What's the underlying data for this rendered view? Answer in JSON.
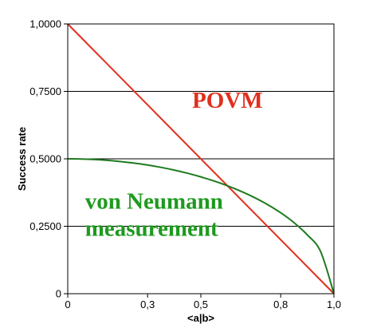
{
  "chart_data": {
    "type": "line",
    "title": "",
    "xlabel": "<a|b>",
    "ylabel": "Success rate",
    "xlim": [
      0,
      1
    ],
    "ylim": [
      0,
      1
    ],
    "x_ticks": [
      {
        "value": 0,
        "label": "0"
      },
      {
        "value": 0.3,
        "label": "0,3"
      },
      {
        "value": 0.5,
        "label": "0,5"
      },
      {
        "value": 0.8,
        "label": "0,8"
      },
      {
        "value": 1.0,
        "label": "1,0"
      }
    ],
    "y_ticks": [
      {
        "value": 0,
        "label": "0"
      },
      {
        "value": 0.25,
        "label": "0,2500"
      },
      {
        "value": 0.5,
        "label": "0,5000"
      },
      {
        "value": 0.75,
        "label": "0,7500"
      },
      {
        "value": 1.0,
        "label": "1,0000"
      }
    ],
    "grid": "horizontal",
    "series": [
      {
        "name": "POVM",
        "color": "#e0301e",
        "x": [
          0,
          1
        ],
        "y": [
          1.0,
          0
        ]
      },
      {
        "name": "von Neumann measurement",
        "color": "#1e7a1e",
        "x": [
          0,
          0.05,
          0.1,
          0.15,
          0.2,
          0.25,
          0.3,
          0.35,
          0.4,
          0.45,
          0.5,
          0.55,
          0.6,
          0.65,
          0.7,
          0.75,
          0.8,
          0.85,
          0.9,
          0.95,
          1.0
        ],
        "y": [
          0.5,
          0.4994,
          0.4975,
          0.4943,
          0.4898,
          0.4841,
          0.477,
          0.4684,
          0.4583,
          0.4465,
          0.433,
          0.4176,
          0.4,
          0.38,
          0.3571,
          0.3307,
          0.3,
          0.2634,
          0.2179,
          0.1561,
          0
        ]
      }
    ],
    "annotations": [
      {
        "text": "POVM",
        "color": "#e0301e",
        "x": 0.6,
        "y": 0.69
      },
      {
        "text": "von Neumann",
        "color": "#1e9a1e",
        "x": 0.26,
        "y": 0.315
      },
      {
        "text": "measurement",
        "color": "#1e9a1e",
        "x": 0.26,
        "y": 0.215
      }
    ]
  }
}
